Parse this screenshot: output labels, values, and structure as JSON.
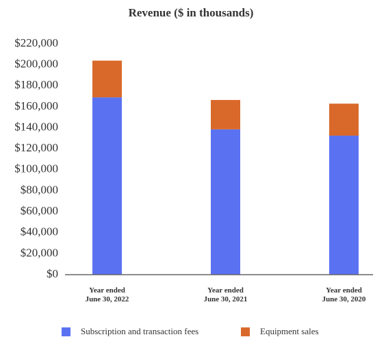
{
  "chart_data": {
    "type": "stacked_bar",
    "title": "Revenue ($ in thousands)",
    "categories": [
      "Year ended\nJune 30, 2022",
      "Year ended\nJune 30, 2021",
      "Year ended\nJune 30, 2020"
    ],
    "series": [
      {
        "name": "Subscription and transaction fees",
        "color": "#5a72f2",
        "values": [
          169000,
          138500,
          132500
        ]
      },
      {
        "name": "Equipment sales",
        "color": "#d9692b",
        "values": [
          35000,
          28000,
          30500
        ]
      }
    ],
    "ylim": [
      0,
      220000
    ],
    "yticks": [
      {
        "value": 0,
        "label": "$0"
      },
      {
        "value": 20000,
        "label": "$20,000"
      },
      {
        "value": 40000,
        "label": "$40,000"
      },
      {
        "value": 60000,
        "label": "$60,000"
      },
      {
        "value": 80000,
        "label": "$80,000"
      },
      {
        "value": 100000,
        "label": "$100,000"
      },
      {
        "value": 120000,
        "label": "$120,000"
      },
      {
        "value": 140000,
        "label": "$140,000"
      },
      {
        "value": 160000,
        "label": "$160,000"
      },
      {
        "value": 180000,
        "label": "$180,000"
      },
      {
        "value": 200000,
        "label": "$200,000"
      },
      {
        "value": 220000,
        "label": "$220,000"
      }
    ],
    "grid": false,
    "legend": "bottom"
  }
}
